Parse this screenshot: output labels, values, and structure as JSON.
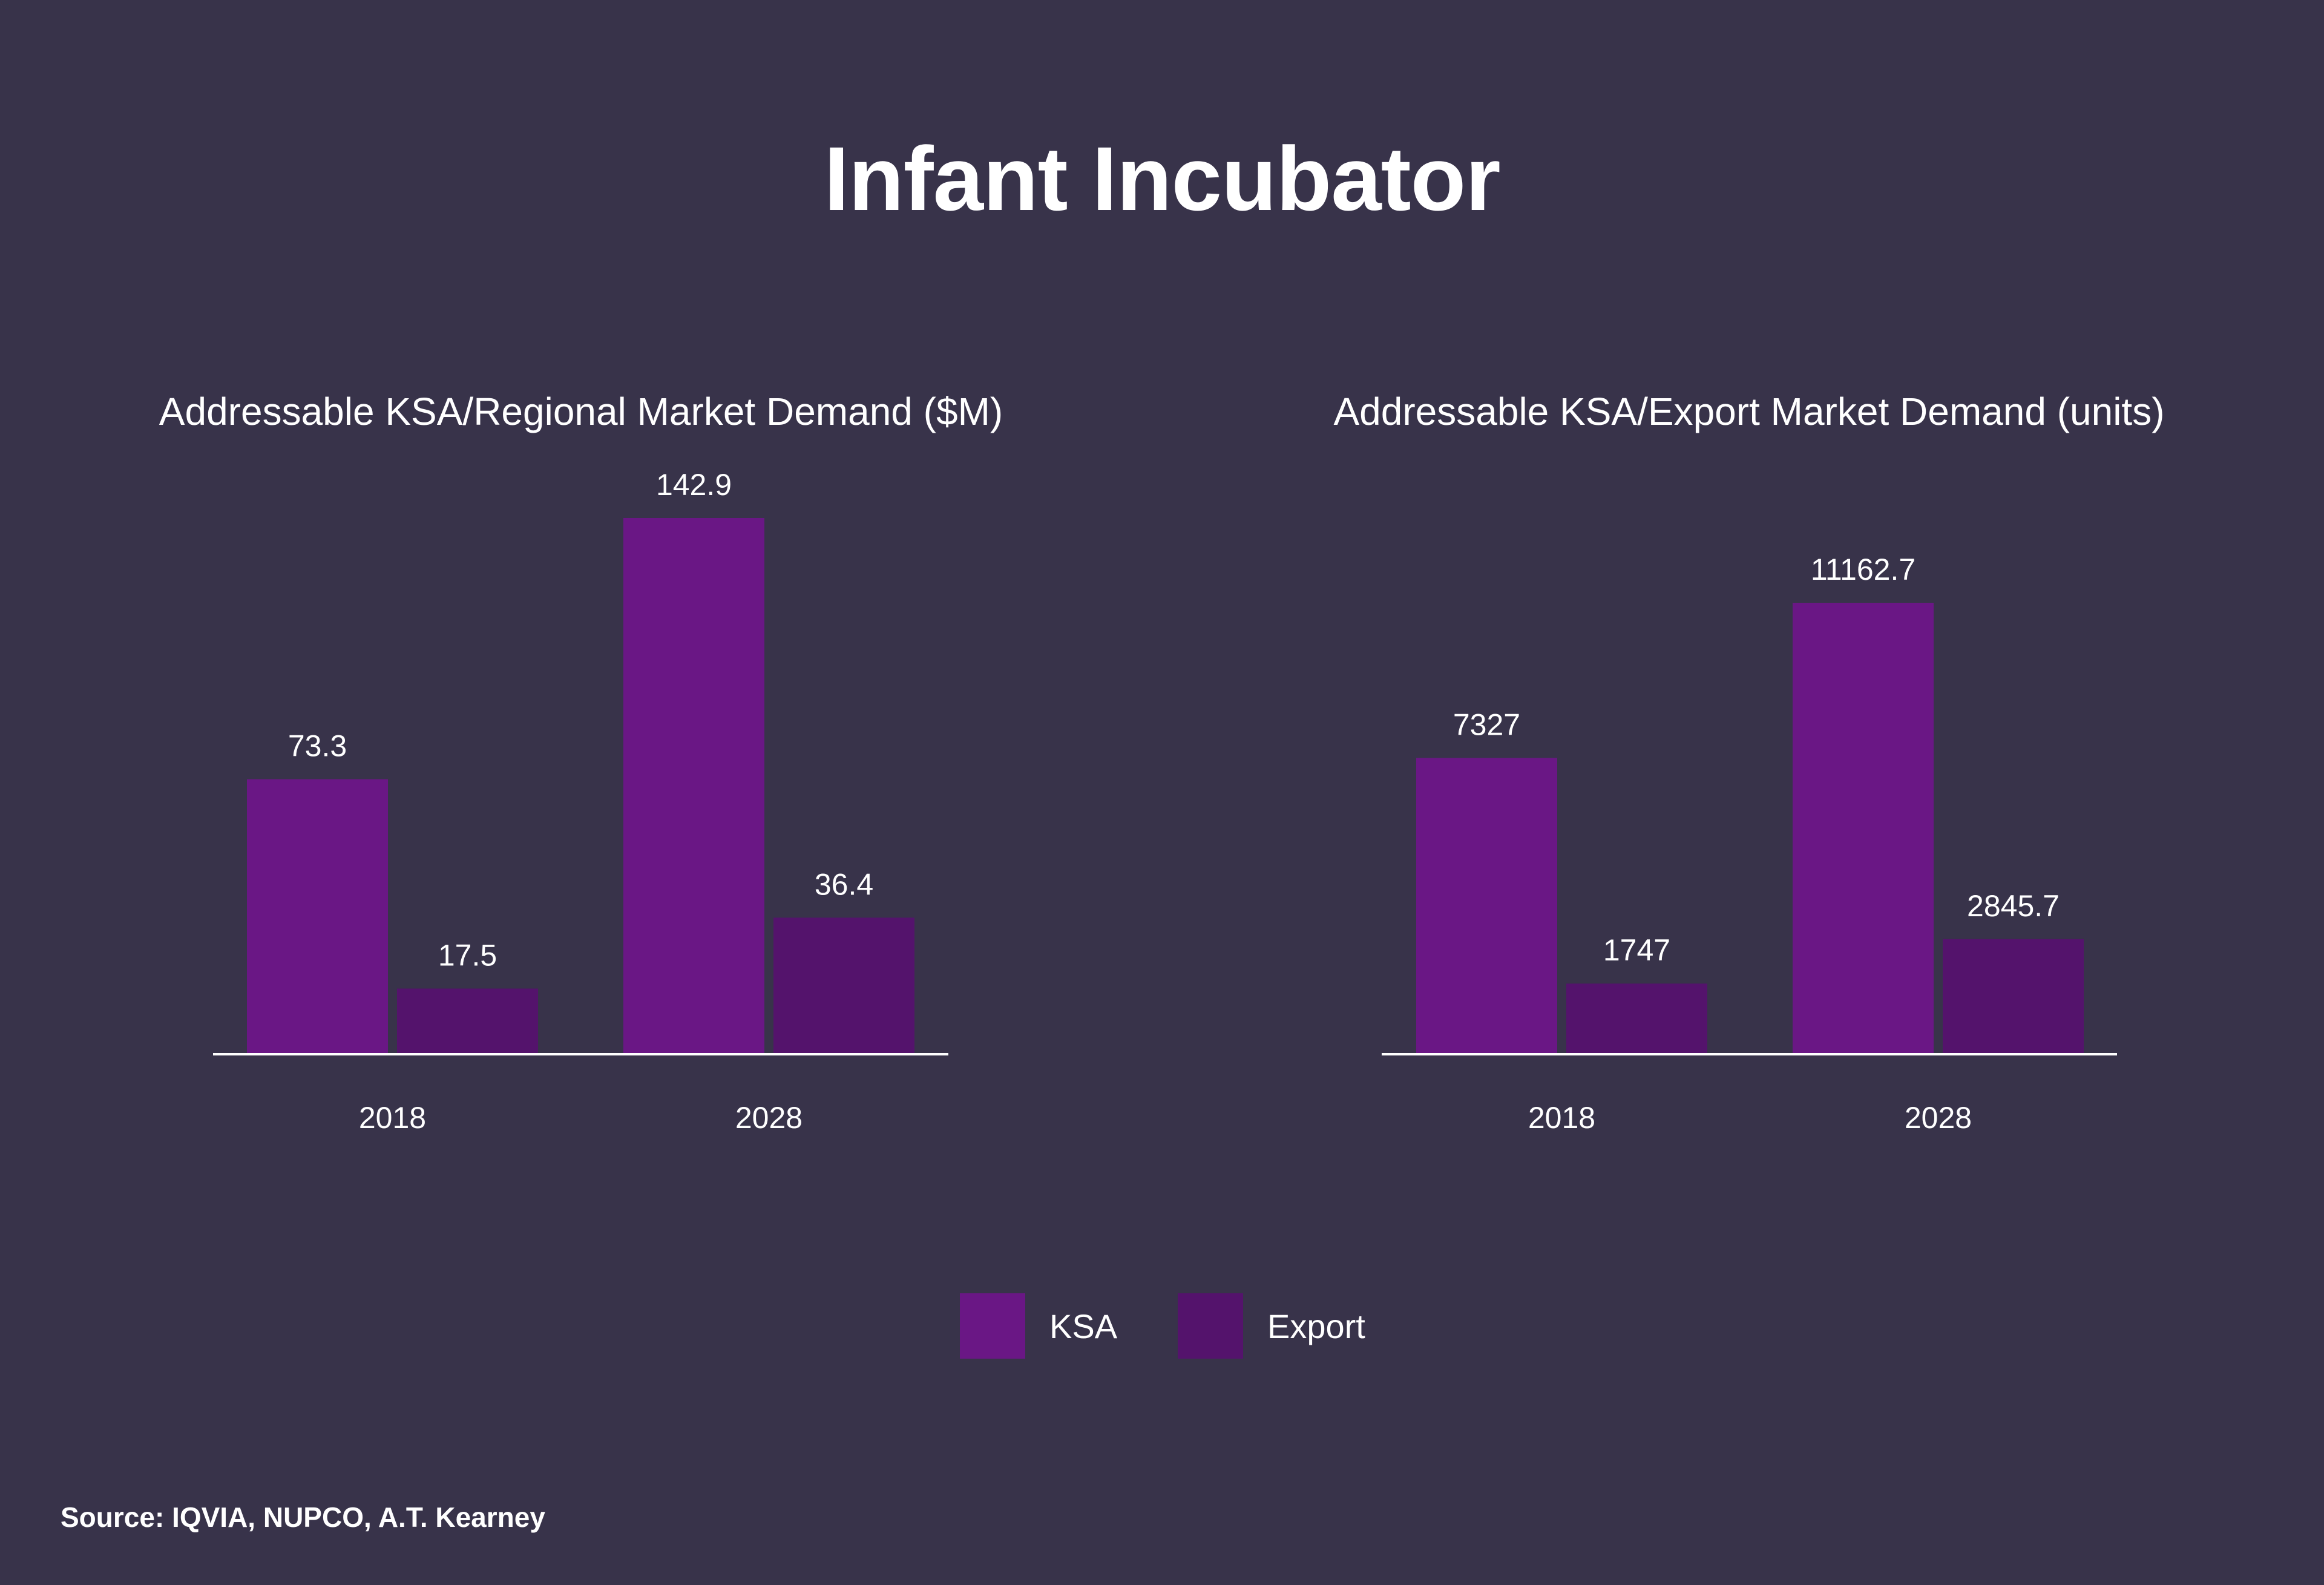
{
  "title": "Infant Incubator",
  "source": "Source: IQVIA, NUPCO, A.T. Kearney",
  "colors": {
    "background": "#38334a",
    "ksa": "#6a1785",
    "export": "#54136c",
    "axis": "#ffffff"
  },
  "legend": [
    {
      "name": "KSA",
      "color": "#6a1785"
    },
    {
      "name": "Export",
      "color": "#54136c"
    }
  ],
  "chart_data": [
    {
      "type": "bar",
      "title": "Addressable KSA/Regional Market Demand ($M)",
      "categories": [
        "2018",
        "2028"
      ],
      "series": [
        {
          "name": "KSA",
          "values": [
            73.3,
            142.9
          ],
          "labels": [
            "73.3",
            "142.9"
          ]
        },
        {
          "name": "Export",
          "values": [
            17.5,
            36.4
          ],
          "labels": [
            "17.5",
            "36.4"
          ]
        }
      ],
      "xlabel": "",
      "ylabel": "",
      "ylim": [
        0,
        142.9
      ],
      "grid": false,
      "legend": "bottom-center"
    },
    {
      "type": "bar",
      "title": "Addressable KSA/Export Market Demand (units)",
      "categories": [
        "2018",
        "2028"
      ],
      "series": [
        {
          "name": "KSA",
          "values": [
            7327,
            11162.7
          ],
          "labels": [
            "7327",
            "11162.7"
          ]
        },
        {
          "name": "Export",
          "values": [
            1747,
            2845.7
          ],
          "labels": [
            "1747",
            "2845.7"
          ]
        }
      ],
      "xlabel": "",
      "ylabel": "",
      "ylim": [
        0,
        11162.7
      ],
      "grid": false,
      "legend": "bottom-center"
    }
  ]
}
